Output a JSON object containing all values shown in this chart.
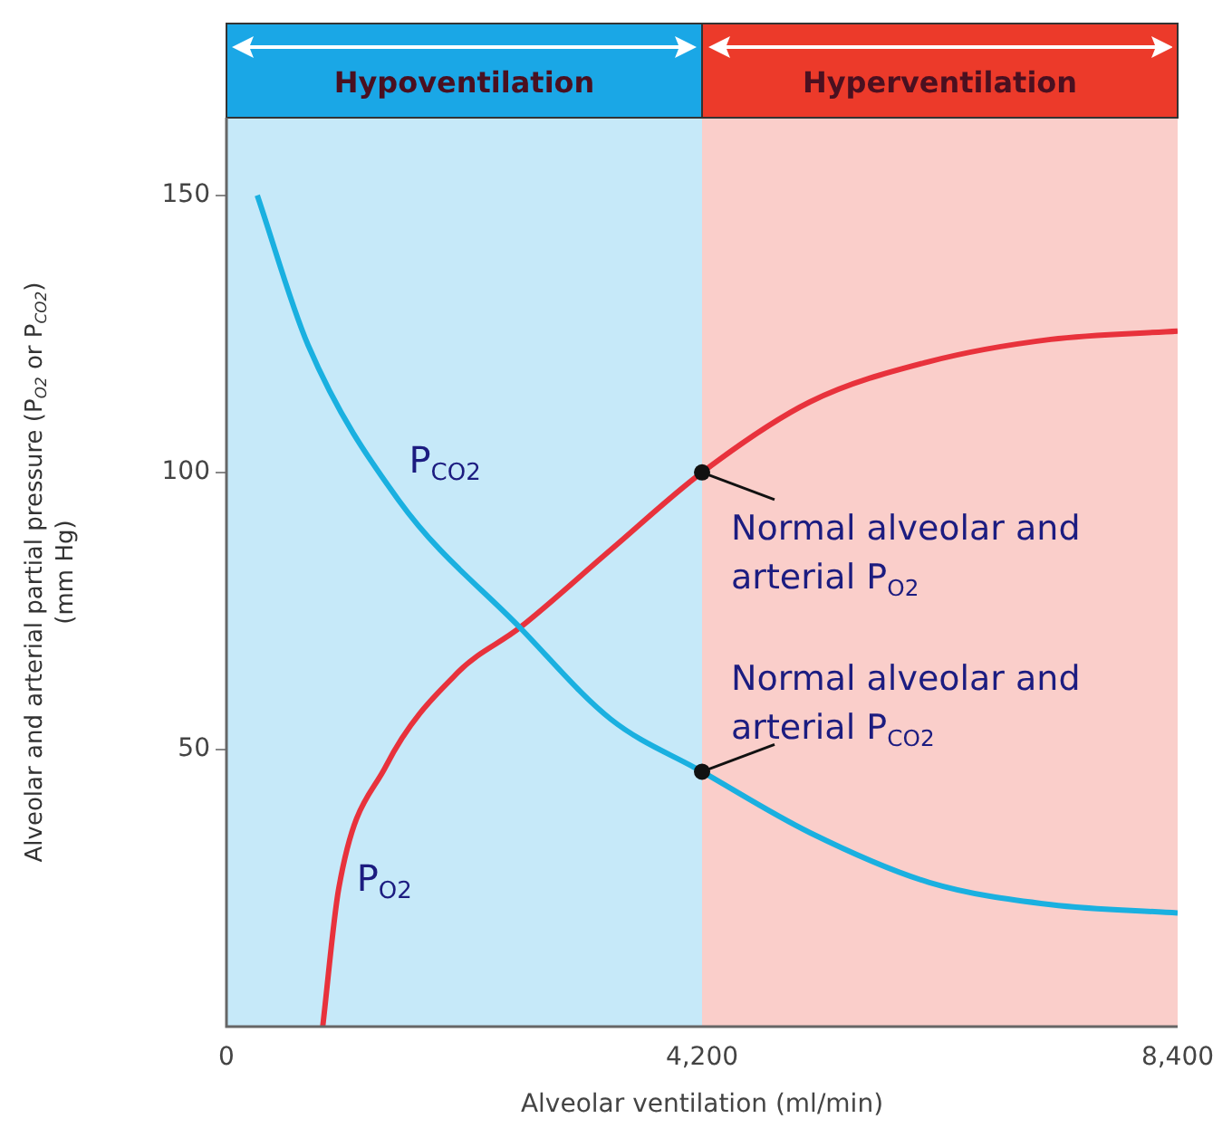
{
  "chart_data": {
    "type": "line",
    "xlabel": "Alveolar ventilation (ml/min)",
    "ylabel": "Alveolar and arterial partial pressure (P$_{O2}$ or P$_{CO2}$) (mm Hg)",
    "xlim": [
      0,
      8400
    ],
    "xticks": [
      0,
      {
        "value": 4200,
        "label": "4,200"
      },
      {
        "value": 8400,
        "label": "8,400"
      }
    ],
    "ylim": [
      0,
      164
    ],
    "yticks": [
      50,
      100,
      150
    ],
    "grid": false,
    "legend": false,
    "marker": "none",
    "line_style": "solid",
    "series": [
      {
        "name": "P$_{CO2}$",
        "color": "#1ab0e0",
        "x": [
          272,
          720,
          1520,
          2592,
          3392,
          4200,
          5152,
          6208,
          7280,
          8400
        ],
        "values": [
          150,
          123,
          95,
          72,
          55.5,
          46,
          35,
          26,
          22,
          20.5
        ]
      },
      {
        "name": "P$_{O2}$",
        "color": "#e8323c",
        "x": [
          850,
          992,
          1408,
          2048,
          2592,
          3392,
          4200,
          5152,
          6208,
          7280,
          8400
        ],
        "values": [
          0,
          25,
          47,
          64,
          72,
          86,
          100,
          112.7,
          120,
          124,
          125.5
        ]
      }
    ],
    "bands": [
      {
        "axis": "x",
        "from": 0,
        "to": 4200,
        "label": "Hypoventilation",
        "color": "#1aa7e6"
      },
      {
        "axis": "x",
        "from": 4200,
        "to": 8400,
        "label": "Hyperventilation",
        "color": "#ec3a2a"
      }
    ],
    "annotations": [
      {
        "text": "Normal alveolar and arterial P$_{O2}$",
        "x": 4200,
        "y": 100
      },
      {
        "text": "Normal alveolar and arterial P$_{CO2}$",
        "x": 4200,
        "y": 46
      }
    ]
  }
}
